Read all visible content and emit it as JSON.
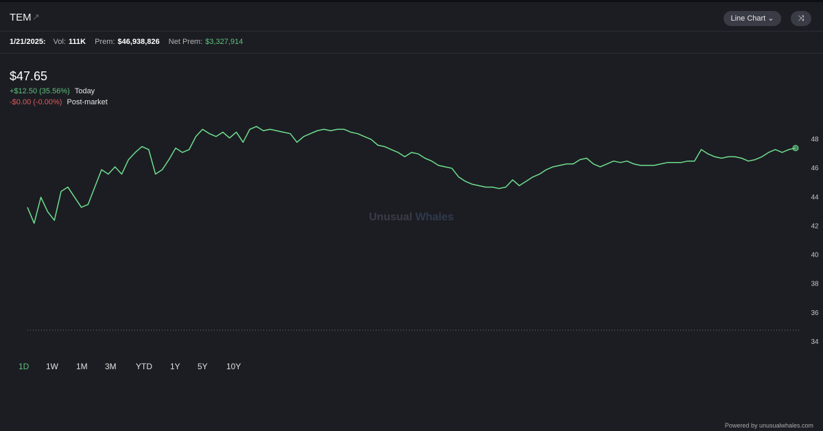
{
  "header": {
    "ticker": "TEM",
    "chart_type": "Line Chart"
  },
  "stats": {
    "date": "1/21/2025:",
    "vol_label": "Vol:",
    "vol": "111K",
    "prem_label": "Prem:",
    "prem": "$46,938,826",
    "net_prem_label": "Net Prem:",
    "net_prem": "$3,327,914"
  },
  "quote": {
    "price": "$47.65",
    "change": "+$12.50 (35.56%)",
    "change_label": "Today",
    "post_change": "-$0.00 (-0.00%)",
    "post_label": "Post-market"
  },
  "chart_data": {
    "type": "line",
    "series": [
      {
        "color": "#6fe08e",
        "values": [
          43.3,
          42.2,
          44,
          43,
          42.4,
          44.4,
          44.7,
          44,
          43.3,
          43.5,
          44.7,
          45.9,
          45.6,
          46.1,
          45.6,
          46.6,
          47.1,
          47.5,
          47.3,
          45.6,
          45.9,
          46.6,
          47.4,
          47.1,
          47.3,
          48.2,
          48.7,
          48.4,
          48.2,
          48.5,
          48.1,
          48.5,
          47.8,
          48.7,
          48.9,
          48.6,
          48.7,
          48.6,
          48.5,
          48.4,
          47.8,
          48.2,
          48.4,
          48.6,
          48.7,
          48.6,
          48.7,
          48.7,
          48.5,
          48.4,
          48.2,
          48,
          47.6,
          47.5,
          47.3,
          47.1,
          46.8,
          47.1,
          47,
          46.7,
          46.5,
          46.2,
          46.1,
          46,
          45.4,
          45.1,
          44.9,
          44.8,
          44.7,
          44.7,
          44.6,
          44.7,
          45.2,
          44.8,
          45.1,
          45.4,
          45.6,
          45.9,
          46.1,
          46.2,
          46.3,
          46.3,
          46.6,
          46.7,
          46.3,
          46.1,
          46.3,
          46.5,
          46.4,
          46.5,
          46.3,
          46.2,
          46.2,
          46.2,
          46.3,
          46.4,
          46.4,
          46.4,
          46.5,
          46.5,
          47.3,
          47,
          46.8,
          46.7,
          46.8,
          46.8,
          46.7,
          46.5,
          46.6,
          46.8,
          47.1,
          47.3,
          47.1,
          47.3,
          47.4
        ]
      }
    ],
    "ylim": [
      33,
      50
    ],
    "yticks": [
      34,
      36,
      38,
      40,
      42,
      44,
      46,
      48
    ],
    "reference_line": 34.8
  },
  "timeframes": [
    "1D",
    "1W",
    "1M",
    "3M",
    "YTD",
    "1Y",
    "5Y",
    "10Y"
  ],
  "watermark": {
    "part1": "Unusual",
    "part2": "Whales"
  },
  "footer": "Powered by unusualwhales.com"
}
